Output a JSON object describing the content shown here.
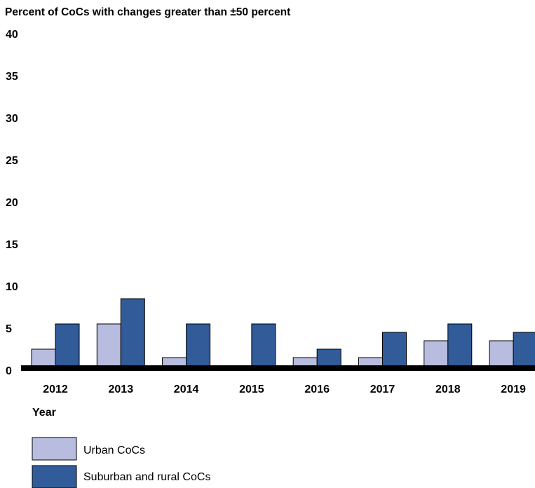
{
  "chart_data": {
    "type": "bar",
    "title": "Percent of CoCs with changes greater than ±50 percent",
    "xlabel": "Year",
    "ylabel": "",
    "ylim": [
      0,
      40
    ],
    "yticks": [
      "0",
      "5",
      "10",
      "15",
      "20",
      "25",
      "30",
      "35",
      "40"
    ],
    "grid": false,
    "legend_position": "bottom-left",
    "categories": [
      "2012",
      "2013",
      "2014",
      "2015",
      "2016",
      "2017",
      "2018",
      "2019"
    ],
    "series": [
      {
        "name": "Urban CoCs",
        "color": "#b8bcde",
        "values": [
          2,
          5,
          1,
          0,
          1,
          1,
          3,
          3
        ]
      },
      {
        "name": "Suburban and rural CoCs",
        "color": "#315b99",
        "values": [
          5,
          8,
          5,
          5,
          2,
          4,
          5,
          4
        ]
      }
    ]
  }
}
